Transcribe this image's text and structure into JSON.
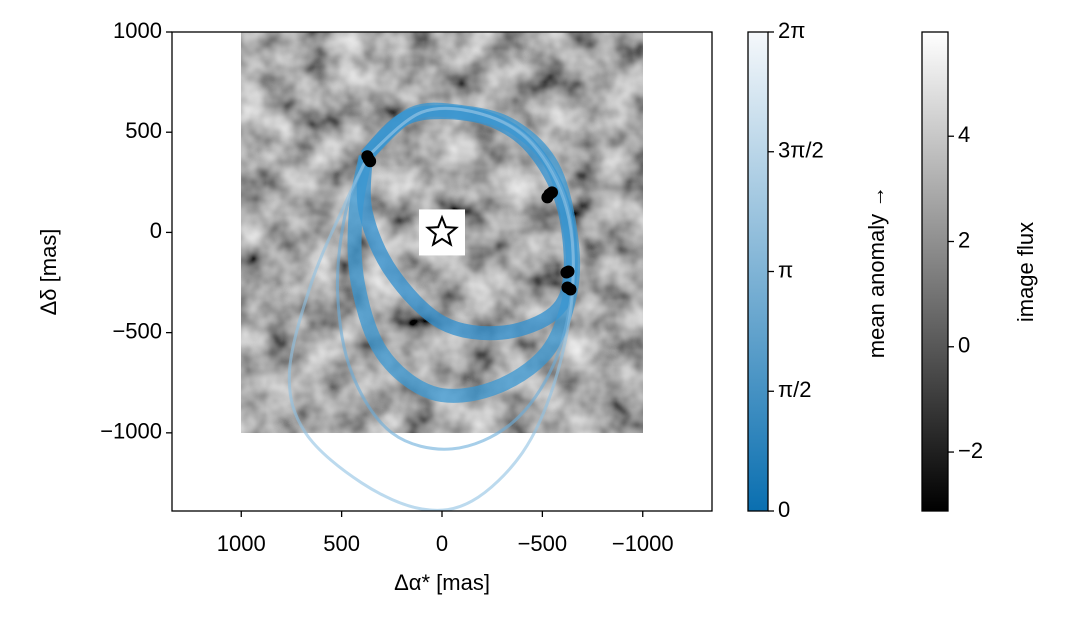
{
  "chart_data": {
    "type": "line",
    "xlabel": "Δα* [mas]",
    "ylabel": "Δδ [mas]",
    "xlim": [
      1345,
      -1345
    ],
    "ylim": [
      -1390,
      1000
    ],
    "xticks": [
      1000,
      500,
      0,
      {
        "value": -500,
        "label": "−500"
      },
      {
        "value": -1000,
        "label": "−1000"
      }
    ],
    "yticks": [
      1000,
      500,
      0,
      {
        "value": -500,
        "label": "−500"
      },
      {
        "value": -1000,
        "label": "−1000"
      }
    ],
    "image": {
      "xlim": [
        1000,
        -1000
      ],
      "ylim": [
        -1000,
        1000
      ]
    },
    "star": {
      "x": 0,
      "y": 0
    },
    "series": [
      {
        "color": "#2f8fcf",
        "x": [
          380,
          200,
          0,
          -250,
          -450,
          -600,
          -640,
          -560,
          -300,
          0,
          250,
          380,
          380
        ],
        "y": [
          380,
          560,
          600,
          560,
          420,
          150,
          -200,
          -400,
          -500,
          -450,
          -200,
          100,
          380
        ]
      },
      {
        "color": "#3a97d2",
        "x": [
          380,
          150,
          -100,
          -350,
          -550,
          -640,
          -640,
          -520,
          -250,
          50,
          300,
          420,
          430,
          380
        ],
        "y": [
          380,
          590,
          600,
          530,
          330,
          0,
          -300,
          -600,
          -780,
          -800,
          -600,
          -250,
          100,
          380
        ]
      },
      {
        "color": "#6aaedb",
        "x": [
          370,
          100,
          -200,
          -450,
          -620,
          -650,
          -560,
          -350,
          -50,
          250,
          450,
          520,
          480,
          370
        ],
        "y": [
          380,
          600,
          590,
          450,
          150,
          -250,
          -650,
          -950,
          -1080,
          -1000,
          -700,
          -300,
          100,
          380
        ]
      },
      {
        "color": "#8fc1e2",
        "x": [
          370,
          100,
          -200,
          -450,
          -620,
          -650,
          -560,
          -400,
          -150,
          100,
          400,
          680,
          760,
          650,
          480,
          370
        ],
        "y": [
          380,
          600,
          590,
          440,
          120,
          -300,
          -750,
          -1100,
          -1340,
          -1380,
          -1250,
          -1000,
          -700,
          -250,
          150,
          380
        ]
      }
    ],
    "observations": {
      "x": [
        365,
        372,
        358,
        -535,
        -548,
        -525,
        -630,
        -620,
        -625,
        -640
      ],
      "y": [
        365,
        380,
        355,
        190,
        200,
        175,
        -195,
        -200,
        -275,
        -285
      ]
    },
    "colorbars": [
      {
        "label": "mean anomaly →",
        "ylim": [
          0,
          6.2832
        ],
        "colors": [
          "#0a6fb0",
          "#f5f8fb"
        ],
        "ticks": [
          0,
          {
            "value": 1.5708,
            "label": "π/2"
          },
          {
            "value": 3.1416,
            "label": "π"
          },
          {
            "value": 4.7124,
            "label": "3π/2"
          },
          {
            "value": 6.2832,
            "label": "2π"
          }
        ]
      },
      {
        "label": "image flux",
        "ylim": [
          -3.12,
          5.98
        ],
        "colors": [
          "#000000",
          "#ffffff"
        ],
        "ticks": [
          {
            "value": -2,
            "label": "−2"
          },
          0,
          2,
          4
        ]
      }
    ]
  }
}
